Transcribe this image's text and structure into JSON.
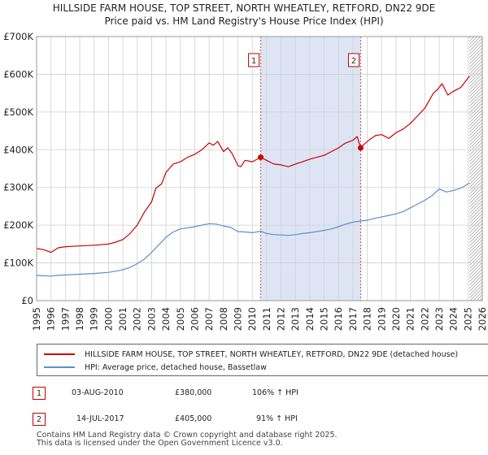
{
  "title_line1": "HILLSIDE FARM HOUSE, TOP STREET, NORTH WHEATLEY, RETFORD, DN22 9DE",
  "title_line2": "Price paid vs. HM Land Registry's House Price Index (HPI)",
  "colors": {
    "property": "#cc0000",
    "hpi": "#5b8fc9",
    "shade": "#dde5f5",
    "grid": "#d0d0d0"
  },
  "chart_data": {
    "type": "line",
    "title": "HILLSIDE FARM HOUSE, TOP STREET, NORTH WHEATLEY, RETFORD, DN22 9DE",
    "subtitle": "Price paid vs. HM Land Registry's House Price Index (HPI)",
    "xlabel": "",
    "ylabel": "",
    "xlim": [
      1995,
      2026
    ],
    "ylim": [
      0,
      700000
    ],
    "x_ticks": [
      1995,
      1996,
      1997,
      1998,
      1999,
      2000,
      2001,
      2002,
      2003,
      2004,
      2005,
      2006,
      2007,
      2008,
      2009,
      2010,
      2011,
      2012,
      2013,
      2014,
      2015,
      2016,
      2017,
      2018,
      2019,
      2020,
      2021,
      2022,
      2023,
      2024,
      2025,
      2026
    ],
    "y_ticks": [
      0,
      100000,
      200000,
      300000,
      400000,
      500000,
      600000,
      700000
    ],
    "y_tick_labels": [
      "£0",
      "£100K",
      "£200K",
      "£300K",
      "£400K",
      "£500K",
      "£600K",
      "£700K"
    ],
    "grid": true,
    "shaded_range": [
      2010.59,
      2017.54
    ],
    "future_hatch_from": 2025.1,
    "series": [
      {
        "name": "HILLSIDE FARM HOUSE, TOP STREET, NORTH WHEATLEY, RETFORD, DN22 9DE (detached house)",
        "color": "#cc0000",
        "x": [
          1995.0,
          1995.5,
          1996.0,
          1996.5,
          1997.0,
          1998.0,
          1999.0,
          2000.0,
          2000.5,
          2001.0,
          2001.5,
          2002.0,
          2002.5,
          2003.0,
          2003.3,
          2003.7,
          2004.0,
          2004.5,
          2005.0,
          2005.5,
          2006.0,
          2006.5,
          2007.0,
          2007.3,
          2007.6,
          2008.0,
          2008.3,
          2008.6,
          2009.0,
          2009.2,
          2009.5,
          2010.0,
          2010.59,
          2011.0,
          2011.5,
          2012.0,
          2012.5,
          2013.0,
          2013.5,
          2014.0,
          2014.5,
          2015.0,
          2015.5,
          2016.0,
          2016.5,
          2017.0,
          2017.3,
          2017.54,
          2017.8,
          2018.2,
          2018.6,
          2019.0,
          2019.5,
          2020.0,
          2020.5,
          2021.0,
          2021.5,
          2022.0,
          2022.3,
          2022.6,
          2022.9,
          2023.2,
          2023.6,
          2024.0,
          2024.5,
          2025.0,
          2025.1
        ],
        "values": [
          138000,
          135000,
          128000,
          140000,
          143000,
          145000,
          147000,
          150000,
          155000,
          162000,
          178000,
          200000,
          235000,
          262000,
          298000,
          310000,
          340000,
          362000,
          368000,
          380000,
          388000,
          400000,
          418000,
          412000,
          422000,
          395000,
          405000,
          390000,
          358000,
          355000,
          372000,
          368000,
          380000,
          372000,
          362000,
          360000,
          355000,
          362000,
          368000,
          375000,
          380000,
          385000,
          395000,
          405000,
          418000,
          425000,
          435000,
          405000,
          415000,
          428000,
          438000,
          440000,
          430000,
          445000,
          455000,
          470000,
          490000,
          510000,
          530000,
          550000,
          560000,
          575000,
          545000,
          555000,
          565000,
          590000,
          595000
        ]
      },
      {
        "name": "HPI: Average price, detached house, Bassetlaw",
        "color": "#5b8fc9",
        "x": [
          1995.0,
          1995.5,
          1996.0,
          1996.5,
          1997.0,
          1998.0,
          1999.0,
          2000.0,
          2000.5,
          2001.0,
          2001.5,
          2002.0,
          2002.5,
          2003.0,
          2003.5,
          2004.0,
          2004.5,
          2005.0,
          2005.5,
          2006.0,
          2006.5,
          2007.0,
          2007.5,
          2008.0,
          2008.5,
          2009.0,
          2009.5,
          2010.0,
          2010.59,
          2011.0,
          2011.5,
          2012.0,
          2012.5,
          2013.0,
          2013.5,
          2014.0,
          2014.5,
          2015.0,
          2015.5,
          2016.0,
          2016.5,
          2017.0,
          2017.54,
          2018.0,
          2018.5,
          2019.0,
          2019.5,
          2020.0,
          2020.5,
          2021.0,
          2021.5,
          2022.0,
          2022.5,
          2023.0,
          2023.5,
          2024.0,
          2024.5,
          2025.0,
          2025.1
        ],
        "values": [
          67000,
          66000,
          65000,
          67000,
          68000,
          70000,
          72000,
          75000,
          78000,
          82000,
          88000,
          98000,
          110000,
          128000,
          148000,
          168000,
          182000,
          190000,
          193000,
          196000,
          200000,
          204000,
          203000,
          198000,
          194000,
          183000,
          182000,
          180000,
          184000,
          178000,
          175000,
          174000,
          173000,
          175000,
          178000,
          180000,
          183000,
          186000,
          190000,
          196000,
          203000,
          208000,
          211000,
          213000,
          218000,
          222000,
          226000,
          230000,
          236000,
          246000,
          256000,
          266000,
          278000,
          296000,
          288000,
          292000,
          298000,
          309000,
          312000
        ]
      }
    ],
    "markers": [
      {
        "label": "1",
        "x": 2010.59,
        "y": 380000
      },
      {
        "label": "2",
        "x": 2017.54,
        "y": 405000
      }
    ]
  },
  "legend": {
    "property_label": "HILLSIDE FARM HOUSE, TOP STREET, NORTH WHEATLEY, RETFORD, DN22 9DE (detached house)",
    "hpi_label": "HPI: Average price, detached house, Bassetlaw"
  },
  "sales": [
    {
      "num": "1",
      "date": "03-AUG-2010",
      "price": "£380,000",
      "hpi": "106% ↑ HPI"
    },
    {
      "num": "2",
      "date": "14-JUL-2017",
      "price": "£405,000",
      "hpi": "91% ↑ HPI"
    }
  ],
  "footer": {
    "line1": "Contains HM Land Registry data © Crown copyright and database right 2025.",
    "line2": "This data is licensed under the Open Government Licence v3.0."
  }
}
